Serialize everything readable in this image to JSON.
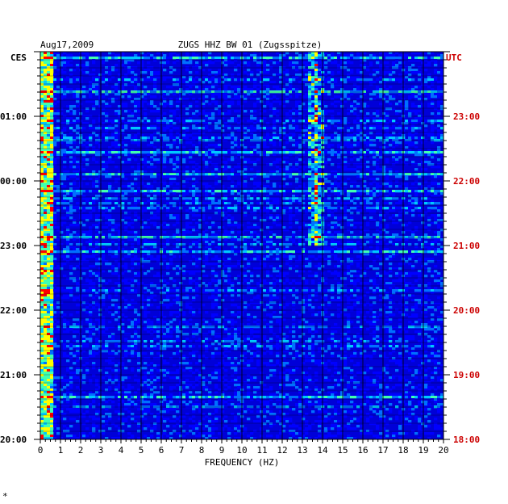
{
  "chart_data": {
    "type": "heatmap",
    "title": "ZUGS HHZ BW 01 (Zugsspitze)",
    "date": "Aug17,2009",
    "xlabel": "FREQUENCY (HZ)",
    "xlim": [
      0,
      20
    ],
    "x_ticks": [
      "0",
      "1",
      "2",
      "3",
      "4",
      "5",
      "6",
      "7",
      "8",
      "9",
      "10",
      "11",
      "12",
      "13",
      "14",
      "15",
      "16",
      "17",
      "18",
      "19",
      "20"
    ],
    "left_axis": {
      "label": "CES",
      "ticks": [
        "01:00",
        "00:00",
        "23:00",
        "22:00",
        "21:00",
        "20:00"
      ]
    },
    "right_axis": {
      "label": "UTC",
      "ticks": [
        "23:00",
        "22:00",
        "21:00",
        "20:00",
        "19:00",
        "18:00"
      ]
    },
    "grid": true,
    "colors": {
      "background": "#0000d8",
      "low": "#0000ff",
      "mid": "#00c8ff",
      "high": "#ffff00",
      "peak": "#ff0000",
      "utc_label": "#cc0000",
      "grid": "#000000"
    },
    "bright_rows_minutes_from_top": [
      5,
      35,
      92,
      112,
      128,
      172,
      185,
      320,
      420,
      425
    ],
    "hot_frequency_bands_hz": [
      0.3,
      13.5,
      13.9
    ]
  },
  "footer_mark": "*"
}
